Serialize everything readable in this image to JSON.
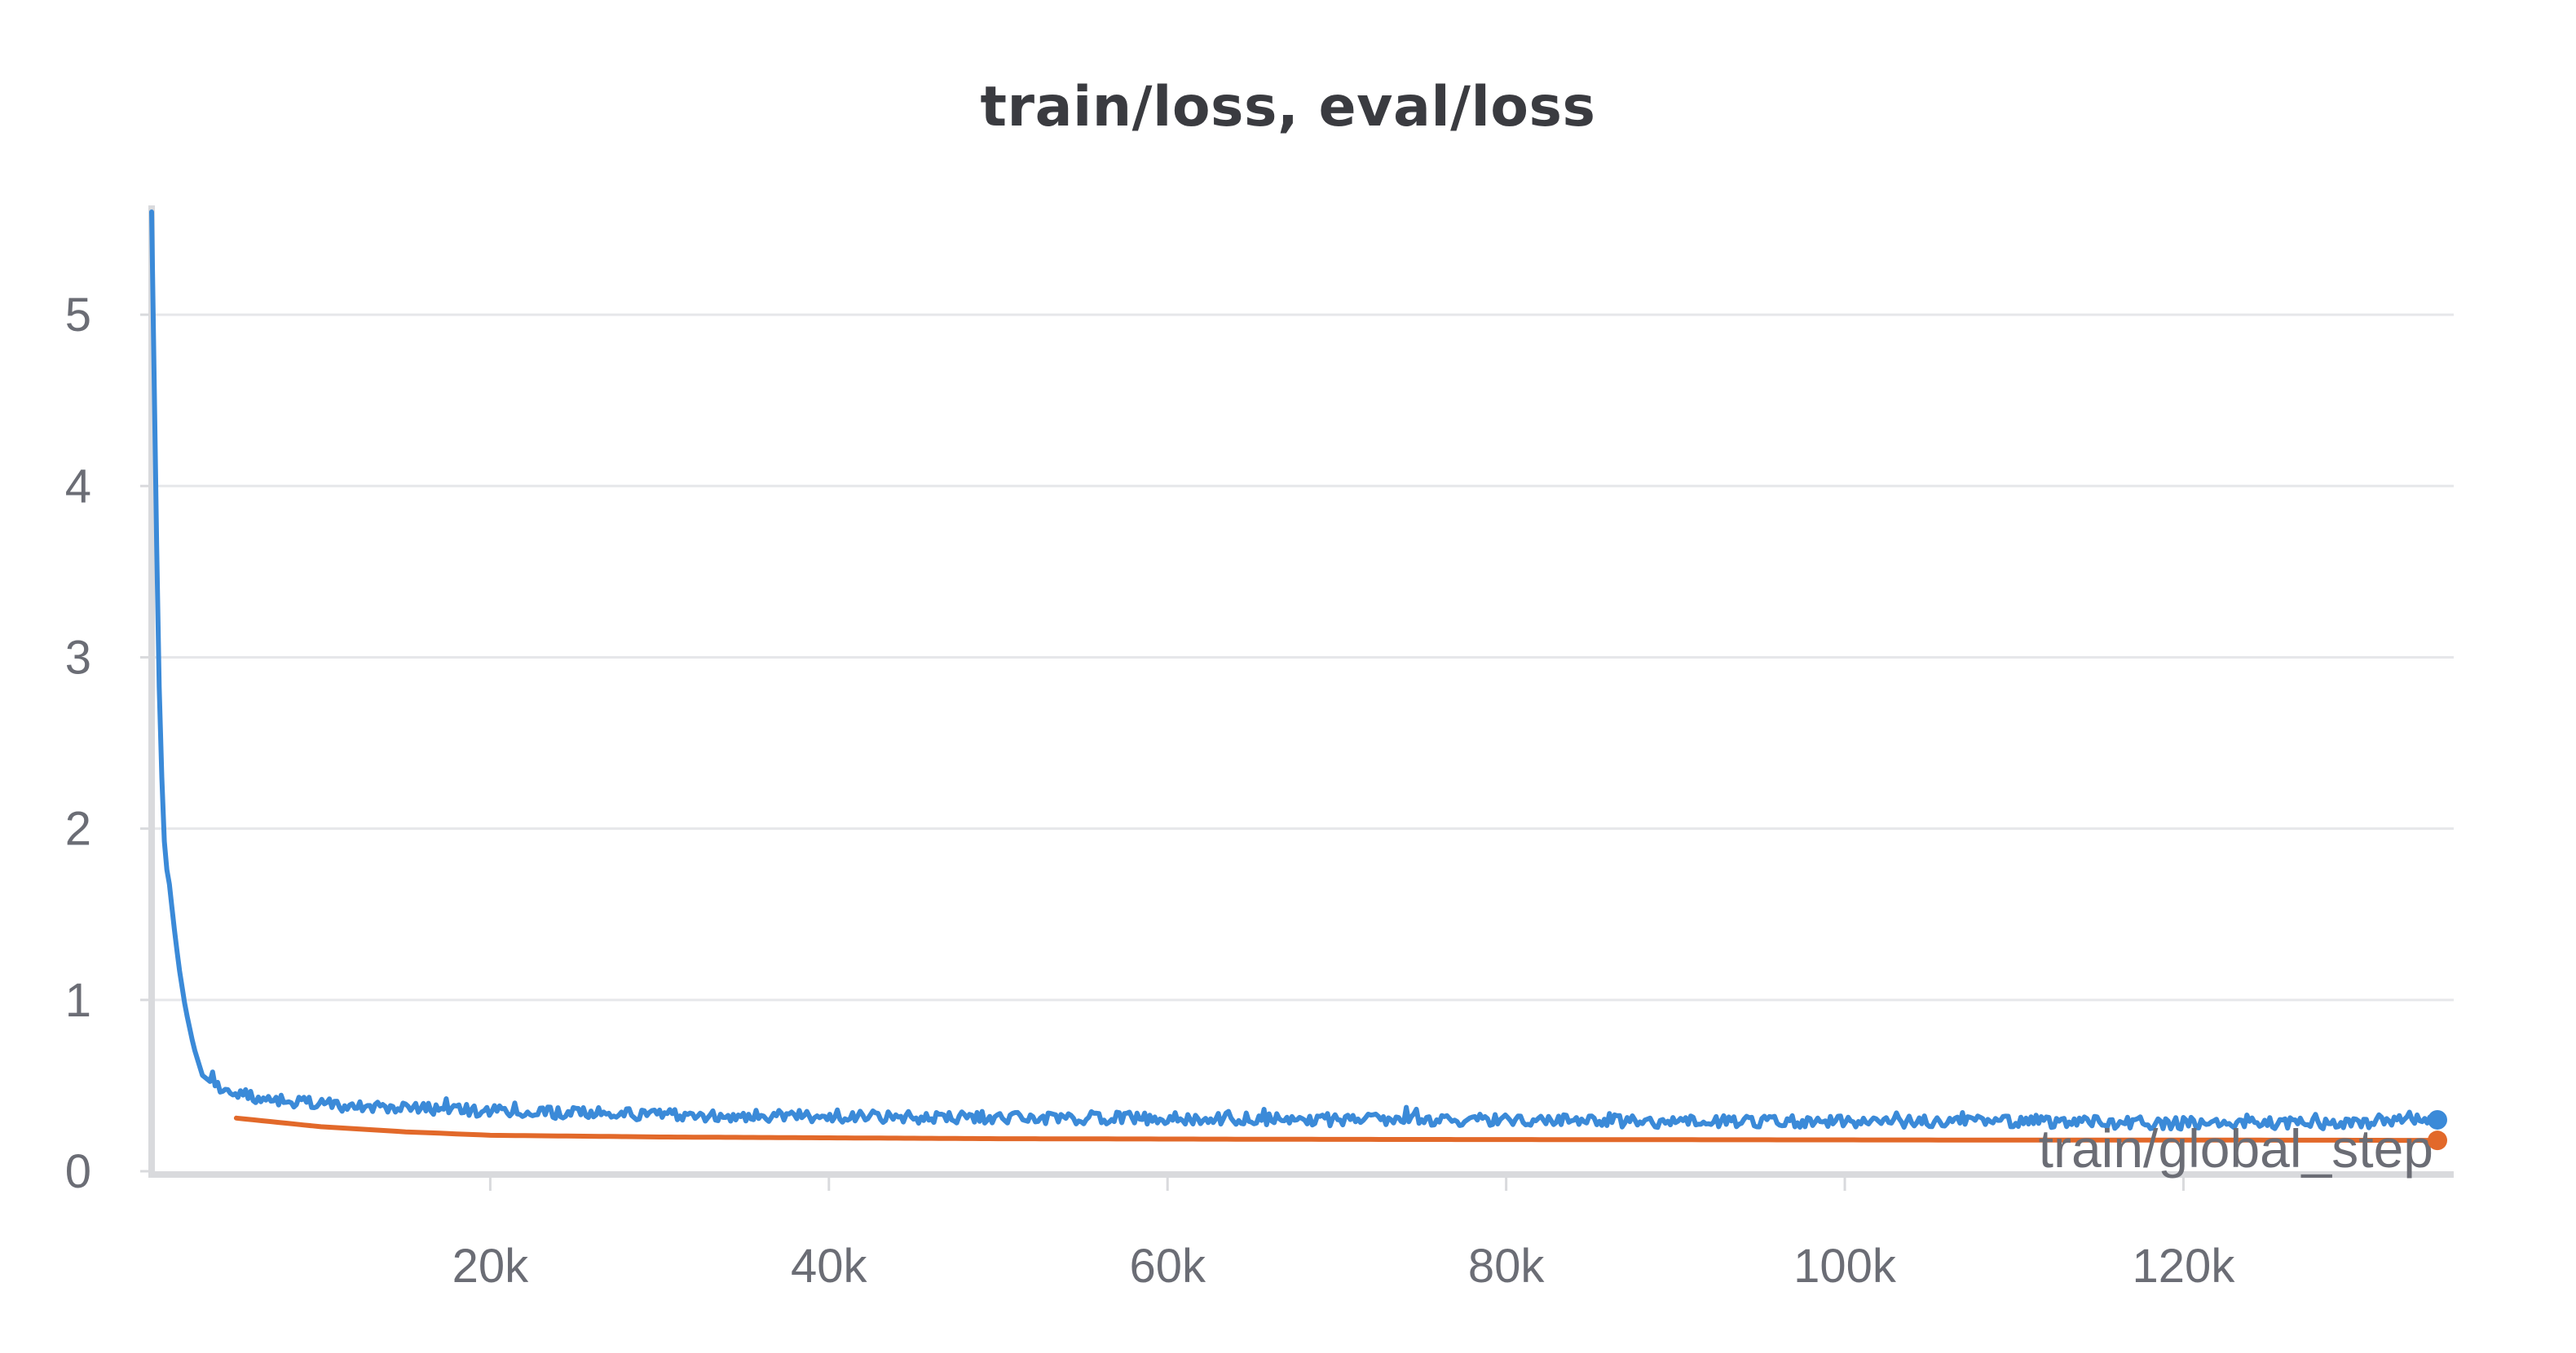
{
  "chart_data": {
    "type": "line",
    "title": "train/loss, eval/loss",
    "xlabel": "train/global_step",
    "ylabel": "",
    "xlim": [
      0,
      135000
    ],
    "ylim": [
      0,
      5.5
    ],
    "x_ticks": [
      20000,
      40000,
      60000,
      80000,
      100000,
      120000
    ],
    "x_tick_labels": [
      "20k",
      "40k",
      "60k",
      "80k",
      "100k",
      "120k"
    ],
    "y_ticks": [
      0,
      1,
      2,
      3,
      4,
      5
    ],
    "y_tick_labels": [
      "0",
      "1",
      "2",
      "3",
      "4",
      "5"
    ],
    "grid": true,
    "legend": "none",
    "series": [
      {
        "color": "#3b8ad8",
        "noise_amplitude": 0.035,
        "x": [
          0,
          200,
          400,
          600,
          800,
          1000,
          1300,
          1600,
          2000,
          2500,
          3000,
          3500,
          4000,
          5000,
          6000,
          8000,
          10000,
          15000,
          20000,
          30000,
          40000,
          50000,
          60000,
          70000,
          80000,
          90000,
          100000,
          110000,
          120000,
          130000,
          135000
        ],
        "y": [
          5.6,
          4.3,
          3.0,
          2.3,
          1.8,
          1.72,
          1.45,
          1.2,
          0.95,
          0.72,
          0.56,
          0.52,
          0.49,
          0.46,
          0.43,
          0.41,
          0.39,
          0.37,
          0.35,
          0.33,
          0.32,
          0.31,
          0.31,
          0.3,
          0.3,
          0.29,
          0.29,
          0.29,
          0.28,
          0.28,
          0.3
        ]
      },
      {
        "color": "#e2692a",
        "noise_amplitude": 0,
        "x": [
          5000,
          10000,
          15000,
          20000,
          30000,
          40000,
          50000,
          60000,
          70000,
          80000,
          90000,
          100000,
          110000,
          120000,
          130000,
          135000
        ],
        "y": [
          0.31,
          0.26,
          0.23,
          0.21,
          0.2,
          0.195,
          0.19,
          0.188,
          0.186,
          0.185,
          0.184,
          0.183,
          0.182,
          0.182,
          0.181,
          0.18
        ]
      }
    ]
  }
}
